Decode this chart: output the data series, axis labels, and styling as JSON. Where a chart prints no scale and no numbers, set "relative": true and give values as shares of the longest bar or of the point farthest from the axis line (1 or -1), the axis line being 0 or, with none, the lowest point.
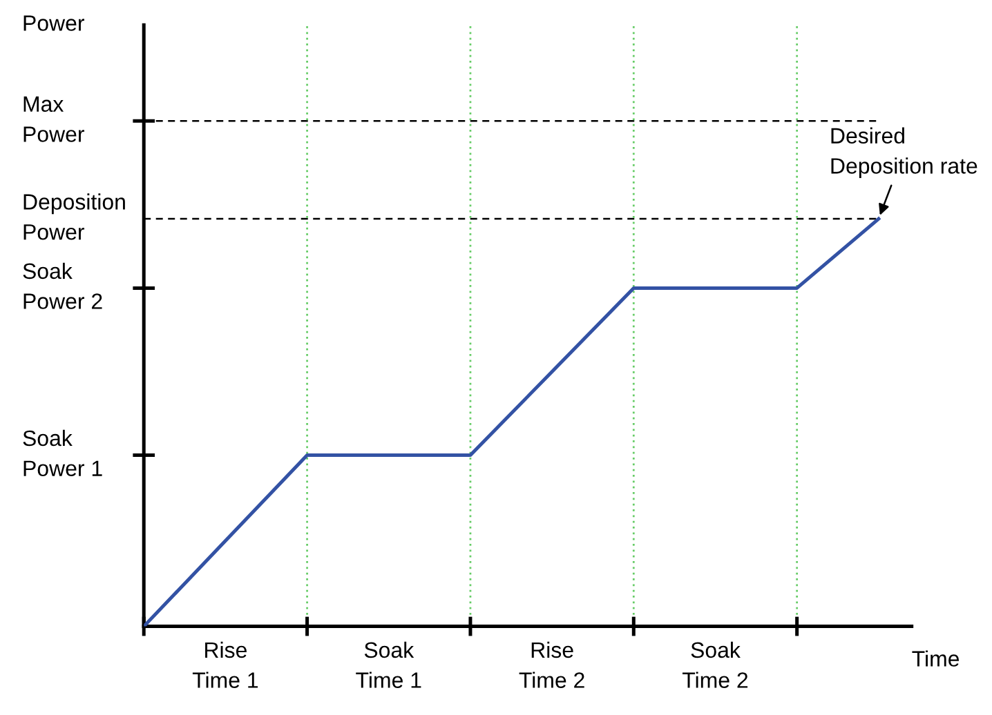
{
  "chart_data": {
    "type": "line",
    "relative": true,
    "xlabel": "Time",
    "categories": [
      null,
      "Rise\nTime 1",
      null,
      "Soak\nTime 1",
      null,
      "Rise\nTime 2",
      null,
      "Soak\nTime 2",
      null,
      null
    ],
    "series": [
      {
        "color": "#3352a4",
        "values": [
          0,
          0.21,
          0.42,
          0.42,
          0.42,
          0.625,
          0.83,
          0.83,
          0.83,
          1
        ]
      }
    ],
    "line_style": "solid",
    "marker": "none",
    "grid": "x",
    "legend": false,
    "ref_lines": [
      {
        "axis": "y",
        "value": 1.24,
        "label": "Max\nPower",
        "color": "#000000",
        "line_style": "dashed"
      },
      {
        "axis": "y",
        "value": 1,
        "label": "Deposition\nPower",
        "color": "#000000",
        "line_style": "dashed"
      }
    ],
    "annotations": [
      "Soak\nPower 1",
      "Soak\nPower 2",
      "Desired\nDeposition rate",
      "Power"
    ]
  }
}
